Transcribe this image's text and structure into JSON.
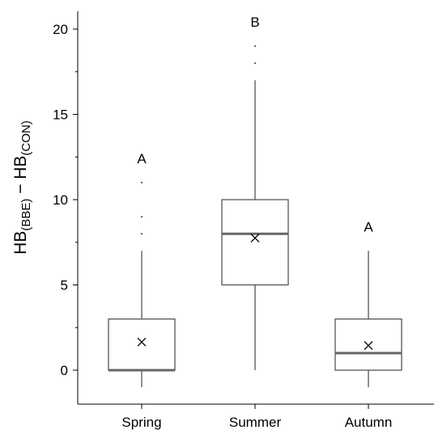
{
  "chart_data": {
    "type": "box",
    "ylabel": {
      "base1": "HB",
      "sub1": "(BBE)",
      "minus": " − ",
      "base2": "HB",
      "sub2": "(CON)"
    },
    "ylim": [
      -1.6,
      21.2
    ],
    "yticks": [
      0,
      5,
      10,
      15,
      20
    ],
    "categories": [
      "Spring",
      "Summer",
      "Autumn"
    ],
    "boxes": [
      {
        "category": "Spring",
        "whisker_low": -1,
        "q1": 0,
        "median": 0,
        "q3": 3,
        "whisker_high": 7,
        "mean": 1.65,
        "outliers": [
          8,
          9,
          11
        ],
        "significance": "A"
      },
      {
        "category": "Summer",
        "whisker_low": 0,
        "q1": 5,
        "median": 8,
        "q3": 10,
        "whisker_high": 17,
        "mean": 7.75,
        "outliers": [
          18,
          19
        ],
        "significance": "B"
      },
      {
        "category": "Autumn",
        "whisker_low": -1,
        "q1": 0,
        "median": 1,
        "q3": 3,
        "whisker_high": 7,
        "mean": 1.45,
        "outliers": [],
        "significance": "A"
      }
    ]
  }
}
